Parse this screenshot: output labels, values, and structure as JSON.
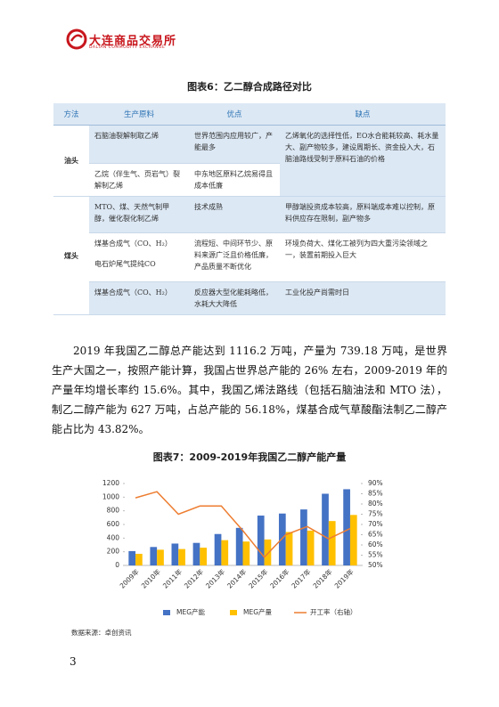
{
  "header": {
    "logo_cn": "大连商品交易所",
    "logo_en": "DALIAN COMMODITY EXCHANGE"
  },
  "table": {
    "title": "图表6：乙二醇合成路径对比",
    "header": [
      "方法",
      "生产原料",
      "优点",
      "缺点"
    ],
    "groups": [
      {
        "name": "油头",
        "rows": [
          {
            "materials": [
              "石脑油裂解制取乙烯"
            ],
            "pros": "世界范围内应用较广，产能最多",
            "cons": "乙烯氧化的选择性低，EO水合能耗较高、耗水量大、副产物较多，建设周期长、资金投入大，石脑油路线受制于原料石油的价格"
          },
          {
            "materials": [
              "乙烷（伴生气、页岩气）裂解制乙烯"
            ],
            "pros": "中东地区原料乙烷易得且成本低廉"
          }
        ]
      },
      {
        "name": "煤头",
        "rows": [
          {
            "materials": [
              "MTO、煤、天然气制甲醇，催化裂化制乙烯"
            ],
            "pros": "技术成熟",
            "cons": "甲醇端投资成本较高，原料端成本难以控制，原料供应存在限制，副产物多"
          },
          {
            "materials": [
              "煤基合成气（CO、H₂）",
              "电石炉尾气提纯CO"
            ],
            "pros": "流程短、中间环节少、原料来源广泛且价格低廉，产品质量不断优化",
            "cons": "环境负荷大、煤化工被列为四大重污染领域之一，装置前期投入巨大"
          },
          {
            "materials": [
              "煤基合成气（CO、H₂）"
            ],
            "pros": "反应器大型化能耗略低，水耗大大降低",
            "cons": "工业化投产尚需时日"
          }
        ]
      }
    ]
  },
  "body": {
    "paragraph": "2019 年我国乙二醇总产能达到 1116.2 万吨，产量为 739.18 万吨，是世界生产大国之一，按照产能计算，我国占世界总产能的 26% 左右，2009-2019 年的产量年均增长率约 15.6%。其中，我国乙烯法路线（包括石脑油法和 MTO 法），制乙二醇产能为 627 万吨，占总产能的 56.18%，煤基合成气草酸酯法制乙二醇产能占比为 43.82%。"
  },
  "chart_data": {
    "type": "bar",
    "title": "图表7：2009-2019年我国乙二醇产能产量",
    "categories": [
      "2009年",
      "2010年",
      "2011年",
      "2012年",
      "2013年",
      "2014年",
      "2015年",
      "2016年",
      "2017年",
      "2018年",
      "2019年"
    ],
    "series": [
      {
        "name": "MEG产能",
        "color": "#4472c4",
        "values": [
          210,
          270,
          320,
          330,
          460,
          550,
          730,
          760,
          820,
          1050,
          1116.2
        ]
      },
      {
        "name": "MEG产量",
        "color": "#ffc000",
        "values": [
          170,
          230,
          240,
          260,
          370,
          350,
          380,
          490,
          510,
          650,
          739.18
        ]
      },
      {
        "name": "开工率（右轴）",
        "color": "#ed7d31",
        "type": "line",
        "axis": "y2",
        "values": [
          83,
          86,
          75,
          79,
          79,
          67,
          54,
          65,
          69,
          63,
          68
        ]
      }
    ],
    "ylim": [
      0,
      1200
    ],
    "yticks": [
      0,
      200,
      400,
      600,
      800,
      1000,
      1200
    ],
    "y2lim": [
      50,
      90
    ],
    "y2ticks": [
      {
        "value": 50,
        "label": "50%"
      },
      {
        "value": 55,
        "label": "55%"
      },
      {
        "value": 60,
        "label": "60%"
      },
      {
        "value": 65,
        "label": "65%"
      },
      {
        "value": 70,
        "label": "70%"
      },
      {
        "value": 75,
        "label": "75%"
      },
      {
        "value": 80,
        "label": "80%"
      },
      {
        "value": 85,
        "label": "85%"
      },
      {
        "value": 90,
        "label": "90%"
      }
    ],
    "grid": false,
    "legend": "bottom"
  },
  "chart_source": "数据来源：卓创资讯",
  "page_number": "3"
}
